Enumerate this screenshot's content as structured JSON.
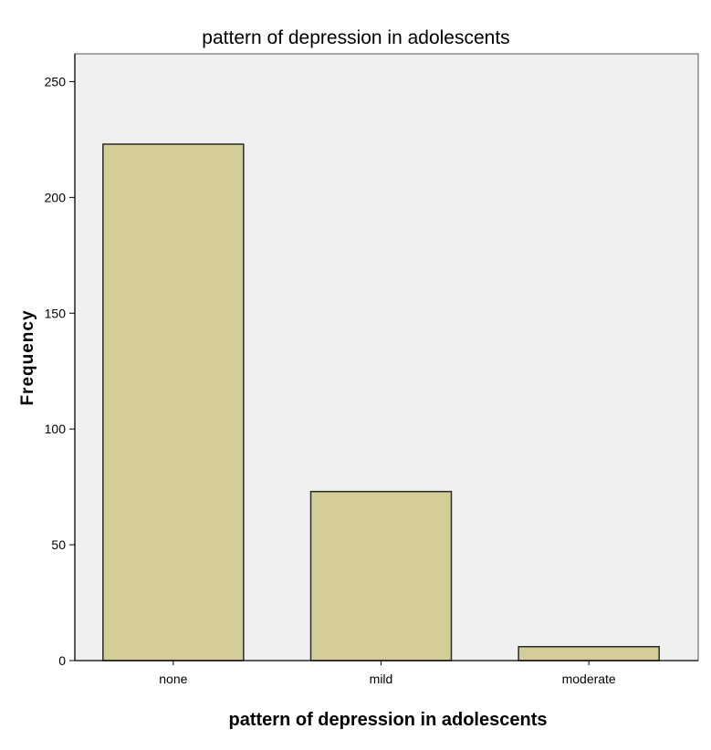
{
  "chart_data": {
    "type": "bar",
    "title": "pattern of depression in adolescents",
    "xlabel": "pattern of depression in adolescents",
    "ylabel": "Frequency",
    "categories": [
      "none",
      "mild",
      "moderate"
    ],
    "values": [
      223,
      73,
      6
    ],
    "ylim": [
      0,
      262
    ],
    "yticks": [
      "0",
      "50",
      "100",
      "150",
      "200",
      "250"
    ],
    "ytick_values": [
      0,
      50,
      100,
      150,
      200,
      250
    ],
    "grid": false,
    "legend": "none",
    "colors": {
      "bar_fill": "#d4cd97",
      "bar_stroke": "#2b2b2b",
      "plot_bg": "#f0f0f0",
      "axis": "#000000"
    }
  }
}
